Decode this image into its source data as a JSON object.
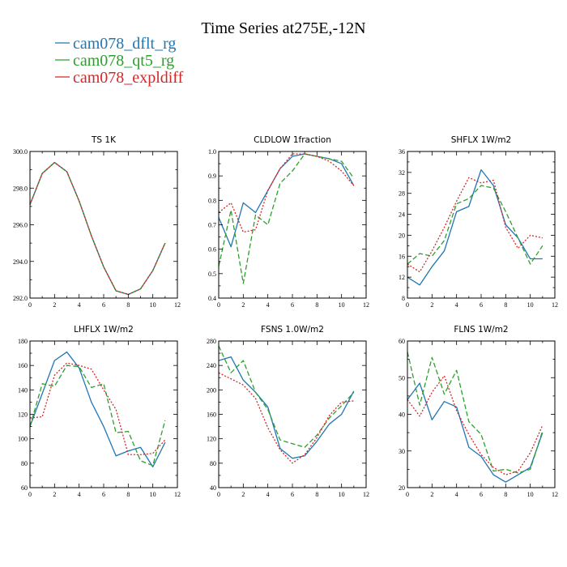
{
  "figure": {
    "title": "Time Series at275E,-12N"
  },
  "legend": [
    {
      "label": "cam078_dflt_rg",
      "color": "#1f77b4",
      "dash": ""
    },
    {
      "label": "cam078_qt5_rg",
      "color": "#2ca02c",
      "dash": "6,3"
    },
    {
      "label": "cam078_expldiff",
      "color": "#d62728",
      "dash": "2,2"
    }
  ],
  "chart_data": [
    {
      "type": "line",
      "title": "TS    1K",
      "x": [
        0,
        1,
        2,
        3,
        4,
        5,
        6,
        7,
        8,
        9,
        10,
        11
      ],
      "xlim": [
        0,
        12
      ],
      "xticks": [
        0,
        2,
        4,
        6,
        8,
        10,
        12
      ],
      "ylim": [
        292,
        300
      ],
      "yticks": [
        292.0,
        294.0,
        296.0,
        298.0,
        300.0
      ],
      "ytick_labels": [
        "292.0",
        "294.0",
        "296.0",
        "298.0",
        "300.0"
      ],
      "series": [
        {
          "name": "cam078_dflt_rg",
          "values": [
            297.1,
            298.8,
            299.4,
            298.9,
            297.3,
            295.4,
            293.7,
            292.4,
            292.2,
            292.5,
            293.5,
            295.0
          ]
        },
        {
          "name": "cam078_qt5_rg",
          "values": [
            297.1,
            298.8,
            299.4,
            298.9,
            297.3,
            295.4,
            293.7,
            292.4,
            292.2,
            292.5,
            293.5,
            295.0
          ]
        },
        {
          "name": "cam078_expldiff",
          "values": [
            297.1,
            298.8,
            299.4,
            298.9,
            297.3,
            295.4,
            293.7,
            292.4,
            292.2,
            292.5,
            293.5,
            295.0
          ]
        }
      ]
    },
    {
      "type": "line",
      "title": "CLDLOW    1fraction",
      "x": [
        0,
        1,
        2,
        3,
        4,
        5,
        6,
        7,
        8,
        9,
        10,
        11
      ],
      "xlim": [
        0,
        12
      ],
      "xticks": [
        0,
        2,
        4,
        6,
        8,
        10,
        12
      ],
      "ylim": [
        0.4,
        1.0
      ],
      "yticks": [
        0.4,
        0.5,
        0.6,
        0.7,
        0.8,
        0.9,
        1.0
      ],
      "ytick_labels": [
        "0.4",
        "0.5",
        "0.6",
        "0.7",
        "0.8",
        "0.9",
        "1.0"
      ],
      "series": [
        {
          "name": "cam078_dflt_rg",
          "values": [
            0.73,
            0.61,
            0.79,
            0.75,
            0.84,
            0.93,
            0.98,
            0.99,
            0.98,
            0.97,
            0.95,
            0.86
          ]
        },
        {
          "name": "cam078_qt5_rg",
          "values": [
            0.53,
            0.76,
            0.46,
            0.74,
            0.7,
            0.87,
            0.92,
            0.99,
            0.98,
            0.97,
            0.96,
            0.89
          ]
        },
        {
          "name": "cam078_expldiff",
          "values": [
            0.75,
            0.79,
            0.67,
            0.68,
            0.84,
            0.93,
            0.99,
            0.99,
            0.98,
            0.96,
            0.92,
            0.86
          ]
        }
      ]
    },
    {
      "type": "line",
      "title": "SHFLX    1W/m2",
      "x": [
        0,
        1,
        2,
        3,
        4,
        5,
        6,
        7,
        8,
        9,
        10,
        11
      ],
      "xlim": [
        0,
        12
      ],
      "xticks": [
        0,
        2,
        4,
        6,
        8,
        10,
        12
      ],
      "ylim": [
        8,
        36
      ],
      "yticks": [
        8,
        12,
        16,
        20,
        24,
        28,
        32,
        36
      ],
      "ytick_labels": [
        "8",
        "12",
        "16",
        "20",
        "24",
        "28",
        "32",
        "36"
      ],
      "series": [
        {
          "name": "cam078_dflt_rg",
          "values": [
            12.0,
            10.5,
            14.0,
            17.0,
            24.5,
            25.5,
            32.5,
            29.5,
            22.0,
            19.5,
            15.5,
            15.5
          ]
        },
        {
          "name": "cam078_qt5_rg",
          "values": [
            14.5,
            16.5,
            16.0,
            19.0,
            26.0,
            27.0,
            29.5,
            29.0,
            24.5,
            19.5,
            14.5,
            18.0
          ]
        },
        {
          "name": "cam078_expldiff",
          "values": [
            14.5,
            13.0,
            17.0,
            21.5,
            26.5,
            31.0,
            30.0,
            30.5,
            21.5,
            17.5,
            20.0,
            19.5
          ]
        }
      ]
    },
    {
      "type": "line",
      "title": "LHFLX    1W/m2",
      "x": [
        0,
        1,
        2,
        3,
        4,
        5,
        6,
        7,
        8,
        9,
        10,
        11
      ],
      "xlim": [
        0,
        12
      ],
      "xticks": [
        0,
        2,
        4,
        6,
        8,
        10,
        12
      ],
      "ylim": [
        60,
        180
      ],
      "yticks": [
        60,
        80,
        100,
        120,
        140,
        160,
        180
      ],
      "ytick_labels": [
        "60",
        "80",
        "100",
        "120",
        "140",
        "160",
        "180"
      ],
      "series": [
        {
          "name": "cam078_dflt_rg",
          "values": [
            110,
            137,
            164,
            171,
            158,
            130,
            110,
            86,
            90,
            93,
            77,
            97
          ]
        },
        {
          "name": "cam078_qt5_rg",
          "values": [
            110,
            145,
            143,
            160,
            159,
            142,
            145,
            105,
            106,
            82,
            78,
            115
          ]
        },
        {
          "name": "cam078_expldiff",
          "values": [
            117,
            118,
            152,
            162,
            160,
            157,
            140,
            124,
            87,
            87,
            88,
            99
          ]
        }
      ]
    },
    {
      "type": "line",
      "title": "FSNS    1.0W/m2",
      "x": [
        0,
        1,
        2,
        3,
        4,
        5,
        6,
        7,
        8,
        9,
        10,
        11
      ],
      "xlim": [
        0,
        12
      ],
      "xticks": [
        0,
        2,
        4,
        6,
        8,
        10,
        12
      ],
      "ylim": [
        40,
        280
      ],
      "yticks": [
        40,
        80,
        120,
        160,
        200,
        240,
        280
      ],
      "ytick_labels": [
        "40",
        "80",
        "120",
        "160",
        "200",
        "240",
        "280"
      ],
      "series": [
        {
          "name": "cam078_dflt_rg",
          "values": [
            248,
            254,
            216,
            196,
            172,
            104,
            88,
            92,
            116,
            144,
            160,
            198
          ]
        },
        {
          "name": "cam078_qt5_rg",
          "values": [
            272,
            228,
            248,
            196,
            168,
            118,
            112,
            106,
            126,
            154,
            174,
            196
          ]
        },
        {
          "name": "cam078_expldiff",
          "values": [
            228,
            218,
            208,
            186,
            138,
            102,
            80,
            94,
            122,
            158,
            180,
            182
          ]
        }
      ]
    },
    {
      "type": "line",
      "title": "FLNS    1W/m2",
      "x": [
        0,
        1,
        2,
        3,
        4,
        5,
        6,
        7,
        8,
        9,
        10,
        11
      ],
      "xlim": [
        0,
        12
      ],
      "xticks": [
        0,
        2,
        4,
        6,
        8,
        10,
        12
      ],
      "ylim": [
        20,
        60
      ],
      "yticks": [
        20,
        30,
        40,
        50,
        60
      ],
      "ytick_labels": [
        "20",
        "30",
        "40",
        "50",
        "60"
      ],
      "series": [
        {
          "name": "cam078_dflt_rg",
          "values": [
            44,
            48.5,
            38.5,
            43.5,
            42,
            31,
            28.5,
            23.5,
            21.5,
            23.5,
            25.5,
            35
          ]
        },
        {
          "name": "cam078_qt5_rg",
          "values": [
            57,
            42.5,
            55.5,
            45.5,
            52,
            38,
            34.5,
            24.5,
            25,
            24,
            25,
            35.5
          ]
        },
        {
          "name": "cam078_expldiff",
          "values": [
            44,
            39.5,
            46,
            50.5,
            41,
            34.5,
            29,
            25.5,
            23.5,
            24.5,
            29.5,
            37
          ]
        }
      ]
    }
  ]
}
